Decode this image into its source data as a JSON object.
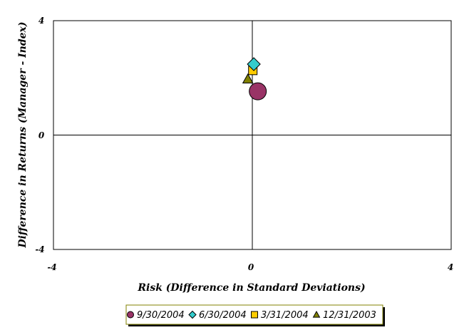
{
  "chart_data": {
    "type": "scatter",
    "title": "",
    "xlabel": "Risk (Difference in Standard Deviations)",
    "ylabel": "Difference in Returns (Manager - Index)",
    "xlim": [
      -4,
      4
    ],
    "ylim": [
      -4,
      4
    ],
    "x_ticks": [
      "-4",
      "0",
      "4"
    ],
    "y_ticks": [
      "4",
      "0",
      "-4"
    ],
    "grid": false,
    "legend_position": "bottom",
    "series": [
      {
        "name": "9/30/2004",
        "marker": "circle",
        "color": "#993366",
        "x": 0.11,
        "y": 1.53
      },
      {
        "name": "6/30/2004",
        "marker": "diamond",
        "color": "#33CCCC",
        "x": 0.03,
        "y": 2.48
      },
      {
        "name": "3/31/2004",
        "marker": "square",
        "color": "#FFCC00",
        "x": 0.01,
        "y": 2.26
      },
      {
        "name": "12/31/2003",
        "marker": "triangle",
        "color": "#808000",
        "x": -0.09,
        "y": 1.96
      }
    ]
  }
}
